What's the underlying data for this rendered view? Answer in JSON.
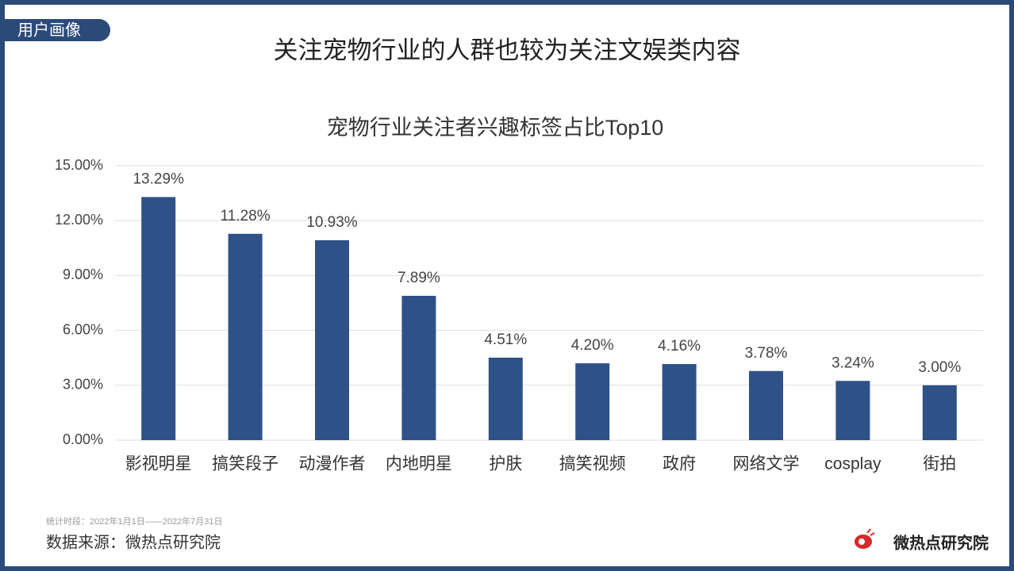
{
  "slide": {
    "tag": "用户画像",
    "title": "关注宠物行业的人群也较为关注文娱类内容",
    "period": "统计时段：2022年1月1日——2022年7月31日",
    "source": "数据来源：微热点研究院",
    "logo": "微热点研究院"
  },
  "chart_data": {
    "type": "bar",
    "title": "宠物行业关注者兴趣标签占比Top10",
    "categories": [
      "影视明星",
      "搞笑段子",
      "动漫作者",
      "内地明星",
      "护肤",
      "搞笑视频",
      "政府",
      "网络文学",
      "cosplay",
      "街拍"
    ],
    "values": [
      13.29,
      11.28,
      10.93,
      7.89,
      4.51,
      4.2,
      4.16,
      3.78,
      3.24,
      3.0
    ],
    "value_labels": [
      "13.29%",
      "11.28%",
      "10.93%",
      "7.89%",
      "4.51%",
      "4.20%",
      "4.16%",
      "3.78%",
      "3.24%",
      "3.00%"
    ],
    "color": "#2e5288",
    "ylim": [
      0,
      15
    ],
    "yticks": [
      {
        "value": 0,
        "label": "0.00%"
      },
      {
        "value": 3,
        "label": "3.00%"
      },
      {
        "value": 6,
        "label": "6.00%"
      },
      {
        "value": 9,
        "label": "9.00%"
      },
      {
        "value": 12,
        "label": "12.00%"
      },
      {
        "value": 15,
        "label": "15.00%"
      }
    ],
    "grid": true
  }
}
